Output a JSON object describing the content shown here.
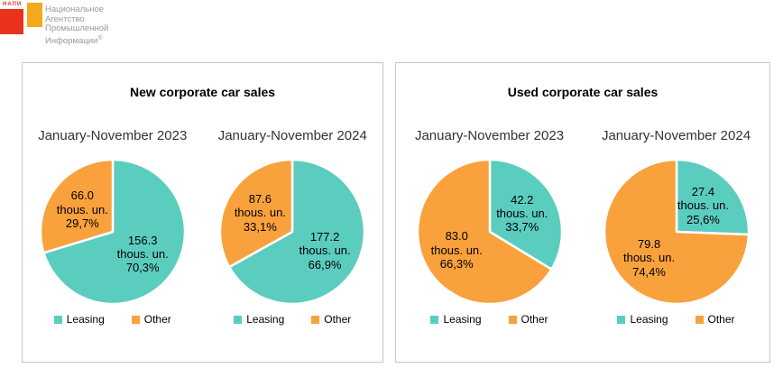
{
  "logo": {
    "acronym": "НАПИ",
    "name_lines": [
      "Национальное",
      "Агентство",
      "Промышленной",
      "Информации"
    ],
    "registered_mark": "®"
  },
  "colors": {
    "leasing": "#5BCDBF",
    "other": "#F9A13C",
    "logo_red": "#E8321C",
    "logo_orange": "#F5A81C",
    "logo_text": "#9A9A9A",
    "panel_border": "#C6C6C6"
  },
  "legend": {
    "leasing_label": "Leasing",
    "other_label": "Other"
  },
  "panels": [
    {
      "title": "New corporate car sales"
    },
    {
      "title": "Used corporate car sales"
    }
  ],
  "chart_data": [
    {
      "type": "pie",
      "panel": "New corporate car sales",
      "title": "January-November 2023",
      "categories": [
        "Leasing",
        "Other"
      ],
      "values_thous_un": [
        156.3,
        66.0
      ],
      "percents": [
        70.3,
        29.7
      ],
      "value_labels": [
        "156.3",
        "66.0"
      ],
      "percent_labels": [
        "70,3%",
        "29,7%"
      ],
      "unit_label": "thous. un.",
      "slice_colors": [
        "#5BCDBF",
        "#F9A13C"
      ],
      "start_angle_deg": 0,
      "direction": "clockwise",
      "legend_position": "bottom"
    },
    {
      "type": "pie",
      "panel": "New corporate car sales",
      "title": "January-November 2024",
      "categories": [
        "Leasing",
        "Other"
      ],
      "values_thous_un": [
        177.2,
        87.6
      ],
      "percents": [
        66.9,
        33.1
      ],
      "value_labels": [
        "177.2",
        "87.6"
      ],
      "percent_labels": [
        "66,9%",
        "33,1%"
      ],
      "unit_label": "thous. un.",
      "slice_colors": [
        "#5BCDBF",
        "#F9A13C"
      ],
      "start_angle_deg": 0,
      "direction": "clockwise",
      "legend_position": "bottom"
    },
    {
      "type": "pie",
      "panel": "Used corporate car sales",
      "title": "January-November 2023",
      "categories": [
        "Leasing",
        "Other"
      ],
      "values_thous_un": [
        42.2,
        83.0
      ],
      "percents": [
        33.7,
        66.3
      ],
      "value_labels": [
        "42.2",
        "83.0"
      ],
      "percent_labels": [
        "33,7%",
        "66,3%"
      ],
      "unit_label": "thous. un.",
      "slice_colors": [
        "#5BCDBF",
        "#F9A13C"
      ],
      "start_angle_deg": 0,
      "direction": "clockwise",
      "legend_position": "bottom"
    },
    {
      "type": "pie",
      "panel": "Used corporate car sales",
      "title": "January-November 2024",
      "categories": [
        "Leasing",
        "Other"
      ],
      "values_thous_un": [
        27.4,
        79.8
      ],
      "percents": [
        25.6,
        74.4
      ],
      "value_labels": [
        "27.4",
        "79.8"
      ],
      "percent_labels": [
        "25,6%",
        "74,4%"
      ],
      "unit_label": "thous. un.",
      "slice_colors": [
        "#5BCDBF",
        "#F9A13C"
      ],
      "start_angle_deg": 0,
      "direction": "clockwise",
      "legend_position": "bottom"
    }
  ]
}
